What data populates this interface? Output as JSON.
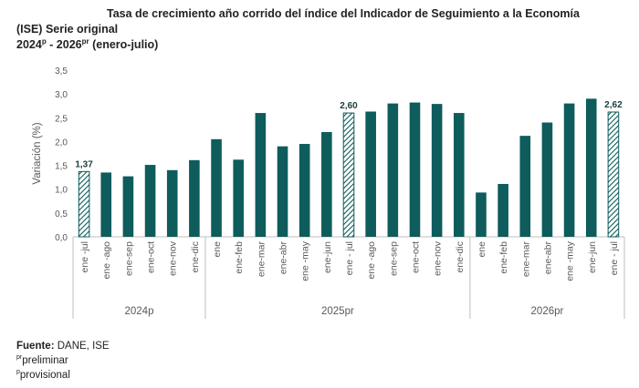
{
  "title": {
    "line1": "Tasa de crecimiento año corrido del índice del Indicador de Seguimiento a la Economía",
    "line2": "(ISE) Serie original",
    "line3_a": "2024",
    "line3_sup_a": "p",
    "line3_b": " - 2026",
    "line3_sup_b": "pr",
    "line3_c": " (enero-julio)"
  },
  "footer": {
    "source_label": "Fuente:",
    "source_value": " DANE, ISE",
    "note1_sup": "pr",
    "note1_text": "preliminar",
    "note2_sup": "p",
    "note2_text": "provisional"
  },
  "colors": {
    "bar": "#0e5c5c",
    "highlight_hatch": "#0e5c5c",
    "axis": "#bfbfbf",
    "text": "#595959"
  },
  "chart_data": {
    "type": "bar",
    "ylabel": "Variación (%)",
    "ylim": [
      0,
      3.5
    ],
    "yticks": [
      "0,0",
      "0,5",
      "1,0",
      "1,5",
      "2,0",
      "2,5",
      "3,0",
      "3,5"
    ],
    "grid": false,
    "categories": [
      "ene -jul",
      "ene -ago",
      "ene-sep",
      "ene-oct",
      "ene-nov",
      "ene-dic",
      "ene",
      "ene-feb",
      "ene-mar",
      "ene-abr",
      "ene -may",
      "ene-jun",
      "ene - jul",
      "ene -ago",
      "ene-sep",
      "ene-oct",
      "ene-nov",
      "ene-dic",
      "ene",
      "ene-feb",
      "ene-mar",
      "ene-abr",
      "ene -may",
      "ene-jun",
      "ene - jul"
    ],
    "values": [
      1.37,
      1.35,
      1.27,
      1.51,
      1.4,
      1.61,
      2.05,
      1.62,
      2.6,
      1.9,
      1.95,
      2.2,
      2.6,
      2.63,
      2.8,
      2.82,
      2.79,
      2.6,
      0.93,
      1.11,
      2.12,
      2.4,
      2.8,
      2.9,
      2.62
    ],
    "highlighted": [
      0,
      12,
      24
    ],
    "data_labels": [
      {
        "index": 0,
        "text": "1,37"
      },
      {
        "index": 12,
        "text": "2,60"
      },
      {
        "index": 24,
        "text": "2,62"
      }
    ],
    "groups": [
      {
        "label": "2024p",
        "start": 0,
        "end": 5
      },
      {
        "label": "2025pr",
        "start": 6,
        "end": 17
      },
      {
        "label": "2026pr",
        "start": 18,
        "end": 24
      }
    ]
  }
}
